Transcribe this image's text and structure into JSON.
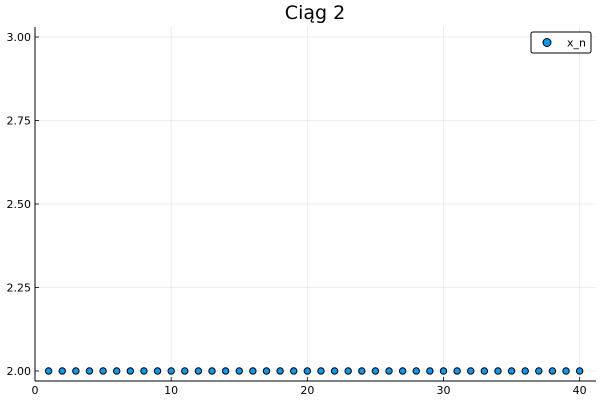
{
  "chart_data": {
    "type": "scatter",
    "title": "Ciąg 2",
    "xlabel": "",
    "ylabel": "",
    "xlim": [
      0,
      41.2
    ],
    "ylim": [
      1.97,
      3.03
    ],
    "xticks": [
      0,
      10,
      20,
      30,
      40
    ],
    "xtick_labels": [
      "0",
      "10",
      "20",
      "30",
      "40"
    ],
    "yticks": [
      2.0,
      2.25,
      2.5,
      2.75,
      3.0
    ],
    "ytick_labels": [
      "2.00",
      "2.25",
      "2.50",
      "2.75",
      "3.00"
    ],
    "grid": true,
    "legend_position": "top-right",
    "series": [
      {
        "name": "x_n",
        "color": "#009af9",
        "marker": "circle",
        "x": [
          1,
          2,
          3,
          4,
          5,
          6,
          7,
          8,
          9,
          10,
          11,
          12,
          13,
          14,
          15,
          16,
          17,
          18,
          19,
          20,
          21,
          22,
          23,
          24,
          25,
          26,
          27,
          28,
          29,
          30,
          31,
          32,
          33,
          34,
          35,
          36,
          37,
          38,
          39,
          40
        ],
        "y": [
          2,
          2,
          2,
          2,
          2,
          2,
          2,
          2,
          2,
          2,
          2,
          2,
          2,
          2,
          2,
          2,
          2,
          2,
          2,
          2,
          2,
          2,
          2,
          2,
          2,
          2,
          2,
          2,
          2,
          2,
          2,
          2,
          2,
          2,
          2,
          2,
          2,
          2,
          2,
          2
        ]
      }
    ]
  }
}
